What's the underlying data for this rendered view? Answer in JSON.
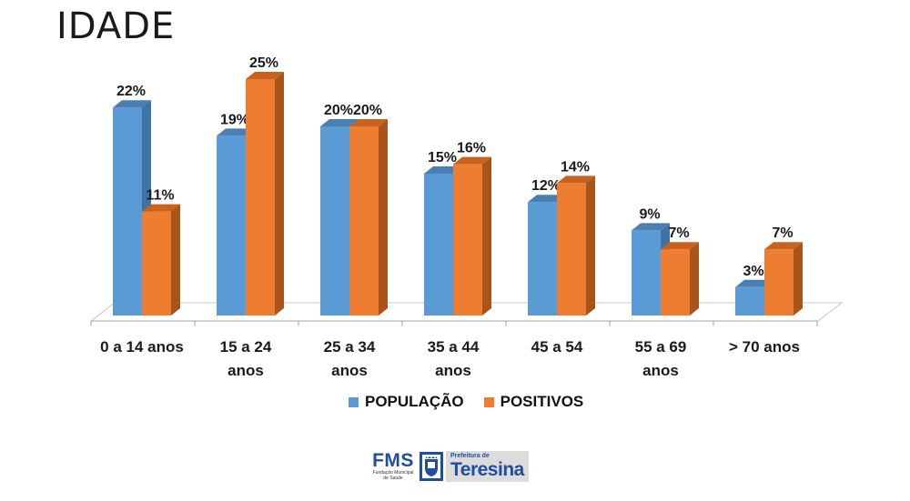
{
  "slide": {
    "title": "IDADE"
  },
  "chart_data": {
    "type": "bar",
    "categories": [
      [
        "0 a 14 anos"
      ],
      [
        "15 a 24",
        "anos"
      ],
      [
        "25 a 34",
        "anos"
      ],
      [
        "35 a 44",
        "anos"
      ],
      [
        "45 a 54"
      ],
      [
        "55 a 69",
        "anos"
      ],
      [
        "> 70 anos"
      ]
    ],
    "series": [
      {
        "name": "POPULAÇÃO",
        "color": "#5b9bd5",
        "side_color": "#3f73a3",
        "top_color": "#4a7fb3",
        "values": [
          22,
          19,
          20,
          15,
          12,
          9,
          3
        ],
        "labels": [
          "22%",
          "19%",
          "20%",
          "15%",
          "12%",
          "9%",
          "3%"
        ]
      },
      {
        "name": "POSITIVOS",
        "color": "#ed7d31",
        "side_color": "#a9541b",
        "top_color": "#c7621f",
        "values": [
          11,
          25,
          20,
          16,
          14,
          7,
          7
        ],
        "labels": [
          "11%",
          "25%",
          "20%",
          "16%",
          "14%",
          "7%",
          "7%"
        ]
      }
    ],
    "ylim": [
      0,
      25
    ],
    "grid": false,
    "legend_position": "bottom",
    "three_d": true
  },
  "legend": {
    "items": [
      {
        "label": "POPULAÇÃO",
        "color": "#5b9bd5"
      },
      {
        "label": "POSITIVOS",
        "color": "#ed7d31"
      }
    ]
  },
  "logo": {
    "fms": "FMS",
    "fms_sub_1": "Fundação Municipal",
    "fms_sub_2": "de Saúde",
    "pref_small": "Prefeitura de",
    "pref_big": "Teresina",
    "crest_icon": "city-crest-icon"
  }
}
